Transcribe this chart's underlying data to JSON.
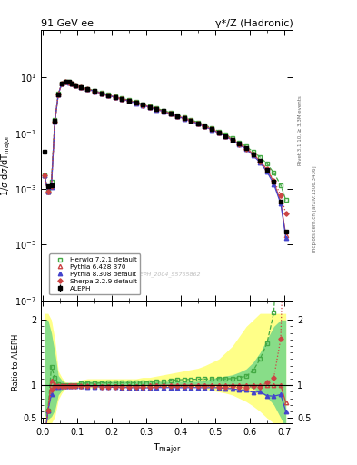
{
  "title_left": "91 GeV ee",
  "title_right": "γ*/Z (Hadronic)",
  "ylabel_main": "1/σ dσ/dT$_\\mathrm{major}$",
  "ylabel_ratio": "Ratio to ALEPH",
  "xlabel": "T$_\\mathrm{major}$",
  "right_label_top": "Rivet 3.1.10, ≥ 3.3M events",
  "right_label_bot": "mcplots.cern.ch [arXiv:1306.3436]",
  "watermark": "ALEPH_2004_S5765862",
  "ylim_main": [
    1e-07,
    500
  ],
  "ylim_ratio": [
    0.42,
    2.3
  ],
  "xlim": [
    -0.005,
    0.725
  ],
  "background_color": "#ffffff",
  "x_bins": [
    0.005,
    0.015,
    0.025,
    0.035,
    0.045,
    0.055,
    0.065,
    0.075,
    0.085,
    0.095,
    0.11,
    0.13,
    0.15,
    0.17,
    0.19,
    0.21,
    0.23,
    0.25,
    0.27,
    0.29,
    0.31,
    0.33,
    0.35,
    0.37,
    0.39,
    0.41,
    0.43,
    0.45,
    0.47,
    0.49,
    0.51,
    0.53,
    0.55,
    0.57,
    0.59,
    0.61,
    0.63,
    0.65,
    0.67,
    0.69,
    0.705
  ],
  "aleph_y": [
    0.022,
    0.0013,
    0.0014,
    0.27,
    2.55,
    6.1,
    7.3,
    6.85,
    6.05,
    5.25,
    4.45,
    3.85,
    3.25,
    2.75,
    2.35,
    2.02,
    1.72,
    1.47,
    1.26,
    1.06,
    0.89,
    0.74,
    0.62,
    0.51,
    0.42,
    0.345,
    0.28,
    0.225,
    0.179,
    0.14,
    0.107,
    0.081,
    0.059,
    0.042,
    0.029,
    0.018,
    0.01,
    0.005,
    0.0018,
    0.00035,
    3e-05
  ],
  "aleph_yerr": [
    0.003,
    0.0002,
    0.0002,
    0.02,
    0.05,
    0.08,
    0.09,
    0.08,
    0.07,
    0.06,
    0.05,
    0.04,
    0.035,
    0.03,
    0.025,
    0.022,
    0.018,
    0.015,
    0.013,
    0.011,
    0.009,
    0.008,
    0.006,
    0.005,
    0.004,
    0.004,
    0.003,
    0.002,
    0.002,
    0.002,
    0.001,
    0.001,
    0.001,
    0.0005,
    0.0004,
    0.0003,
    0.0002,
    0.0001,
    5e-05,
    1e-05,
    5e-06
  ],
  "herwig_y": [
    0.003,
    0.0008,
    0.0018,
    0.3,
    2.58,
    6.12,
    7.32,
    6.9,
    6.1,
    5.3,
    4.58,
    3.98,
    3.35,
    2.85,
    2.44,
    2.1,
    1.79,
    1.53,
    1.31,
    1.11,
    0.935,
    0.785,
    0.658,
    0.55,
    0.455,
    0.375,
    0.305,
    0.246,
    0.196,
    0.154,
    0.118,
    0.089,
    0.065,
    0.047,
    0.033,
    0.022,
    0.014,
    0.0082,
    0.0038,
    0.0014,
    0.0004
  ],
  "pythia6_y": [
    0.003,
    0.0008,
    0.0015,
    0.275,
    2.53,
    6.05,
    7.25,
    6.83,
    6.03,
    5.23,
    4.43,
    3.83,
    3.23,
    2.73,
    2.33,
    2.0,
    1.7,
    1.46,
    1.25,
    1.055,
    0.887,
    0.74,
    0.62,
    0.51,
    0.42,
    0.345,
    0.28,
    0.225,
    0.179,
    0.14,
    0.107,
    0.081,
    0.059,
    0.042,
    0.029,
    0.018,
    0.01,
    0.005,
    0.0018,
    0.00035,
    2.2e-05
  ],
  "pythia8_y": [
    0.003,
    0.0008,
    0.0012,
    0.265,
    2.5,
    6.0,
    7.2,
    6.78,
    5.98,
    5.18,
    4.38,
    3.78,
    3.18,
    2.68,
    2.28,
    1.96,
    1.66,
    1.42,
    1.21,
    1.02,
    0.855,
    0.715,
    0.598,
    0.492,
    0.405,
    0.332,
    0.27,
    0.217,
    0.172,
    0.135,
    0.103,
    0.077,
    0.056,
    0.039,
    0.027,
    0.016,
    0.009,
    0.0042,
    0.0015,
    0.0003,
    1.8e-05
  ],
  "sherpa_y": [
    0.003,
    0.0008,
    0.0013,
    0.268,
    2.52,
    6.02,
    7.22,
    6.8,
    6.0,
    5.2,
    4.4,
    3.8,
    3.2,
    2.7,
    2.3,
    1.98,
    1.68,
    1.44,
    1.23,
    1.035,
    0.87,
    0.728,
    0.61,
    0.502,
    0.413,
    0.34,
    0.276,
    0.221,
    0.176,
    0.138,
    0.105,
    0.079,
    0.058,
    0.041,
    0.028,
    0.0178,
    0.0098,
    0.0052,
    0.002,
    0.0006,
    0.00013
  ],
  "herwig_band_lo": [
    0.55,
    0.48,
    0.52,
    0.62,
    0.85,
    0.92,
    0.97,
    0.98,
    0.98,
    0.98,
    0.99,
    0.99,
    0.99,
    1.0,
    1.0,
    1.0,
    1.0,
    1.0,
    1.0,
    1.0,
    1.0,
    1.0,
    1.0,
    1.0,
    1.0,
    1.0,
    1.0,
    1.0,
    1.0,
    1.0,
    1.0,
    1.0,
    1.0,
    1.0,
    0.98,
    0.95,
    0.9,
    0.82,
    0.7,
    0.5,
    0.35
  ],
  "herwig_band_hi": [
    2.0,
    2.0,
    1.8,
    1.5,
    1.15,
    1.08,
    1.03,
    1.02,
    1.02,
    1.02,
    1.05,
    1.06,
    1.06,
    1.06,
    1.06,
    1.06,
    1.06,
    1.06,
    1.06,
    1.06,
    1.06,
    1.06,
    1.06,
    1.06,
    1.06,
    1.06,
    1.06,
    1.06,
    1.08,
    1.1,
    1.12,
    1.14,
    1.16,
    1.2,
    1.25,
    1.35,
    1.5,
    1.7,
    1.9,
    2.0,
    2.0
  ],
  "yellow_band_lo": [
    0.45,
    0.4,
    0.42,
    0.52,
    0.78,
    0.88,
    0.95,
    0.96,
    0.96,
    0.96,
    0.96,
    0.96,
    0.96,
    0.97,
    0.97,
    0.97,
    0.97,
    0.97,
    0.97,
    0.97,
    0.97,
    0.97,
    0.97,
    0.97,
    0.97,
    0.97,
    0.97,
    0.97,
    0.95,
    0.92,
    0.9,
    0.88,
    0.85,
    0.8,
    0.75,
    0.68,
    0.6,
    0.5,
    0.42,
    0.42,
    0.42
  ],
  "yellow_band_hi": [
    2.1,
    2.1,
    2.0,
    1.7,
    1.22,
    1.12,
    1.05,
    1.04,
    1.04,
    1.04,
    1.08,
    1.1,
    1.1,
    1.1,
    1.1,
    1.1,
    1.1,
    1.1,
    1.1,
    1.12,
    1.12,
    1.14,
    1.16,
    1.18,
    1.2,
    1.22,
    1.24,
    1.26,
    1.3,
    1.35,
    1.4,
    1.5,
    1.6,
    1.75,
    1.9,
    2.0,
    2.1,
    2.1,
    2.1,
    2.1,
    2.1
  ]
}
